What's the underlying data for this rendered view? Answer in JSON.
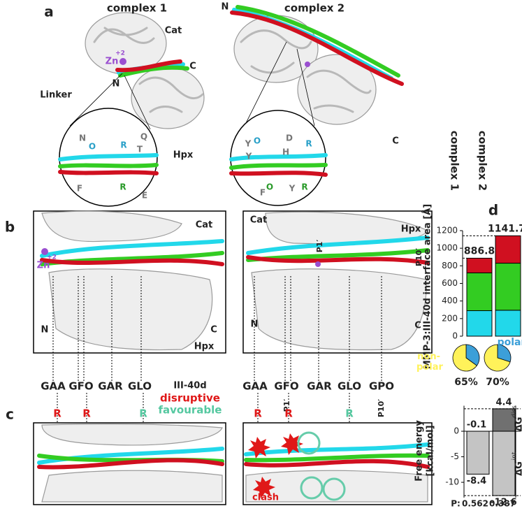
{
  "figure": {
    "a": {
      "label": "a",
      "title_1": "complex 1",
      "title_2": "complex 2",
      "cat": "Cat",
      "zn": "Zn",
      "zn_charge": "+2",
      "c_1": "C",
      "n_1": "N",
      "linker": "Linker",
      "hpx": "Hpx",
      "n_2": "N",
      "c_2": "C",
      "residues_1": [
        "N",
        "O",
        "R",
        "Q",
        "T",
        "F",
        "R",
        "E"
      ],
      "residues_2": [
        "Y",
        "O",
        "Y",
        "D",
        "H",
        "R",
        "F",
        "O",
        "Y",
        "R"
      ]
    },
    "b": {
      "label": "b",
      "cat_1": "Cat",
      "zn": "Zn",
      "zn_charge": "+2",
      "n_1": "N",
      "c_1": "C",
      "hpx_1": "Hpx",
      "cat_2": "Cat",
      "p1_2": "P1′",
      "hpx_2": "Hpx",
      "p10_2": "P10′",
      "n_2": "N",
      "c_2": "C",
      "triplets_1": [
        "GAA",
        "GFO",
        "GAR",
        "GLO"
      ],
      "triplets_2": [
        "GAA",
        "GFO",
        "GAR",
        "GLO",
        "GPO"
      ],
      "p1_3": "P1′",
      "p10_3": "P10′",
      "peptide": "III-40d",
      "disruptive": "disruptive",
      "favourable": "favourable"
    },
    "c": {
      "label": "c",
      "r_1": [
        "R",
        "R",
        "R"
      ],
      "r_2": [
        "R",
        "R",
        "R"
      ],
      "clash": "clash"
    },
    "d": {
      "label": "d"
    }
  },
  "chart_data": [
    {
      "type": "bar",
      "stacked": true,
      "categories": [
        "complex 1",
        "complex 2"
      ],
      "y_label": "MMP-3:III-40d interface area [Å]",
      "ylim": [
        0,
        1200
      ],
      "yticks": [
        0,
        200,
        400,
        600,
        800,
        1000,
        1200
      ],
      "series": [
        {
          "color": "#22d8ea",
          "values": [
            290,
            295
          ]
        },
        {
          "color": "#33cc22",
          "values": [
            430,
            535
          ]
        },
        {
          "color": "#d01020",
          "values": [
            166.8,
            311.7
          ]
        }
      ],
      "totals": [
        886.8,
        1141.7
      ]
    },
    {
      "type": "pie",
      "series": [
        {
          "name": "polar",
          "color": "#3c9fd8",
          "values": [
            35,
            30
          ]
        },
        {
          "name": "non-polar",
          "color": "#fff25a",
          "values": [
            65,
            70
          ],
          "value_labels": [
            "65%",
            "70%"
          ]
        }
      ]
    },
    {
      "type": "bar",
      "y_label": [
        "Free energy",
        "[kcal/mol]"
      ],
      "ylim": [
        -13,
        5
      ],
      "yticks": [
        0,
        -5,
        -10
      ],
      "series": [
        {
          "name": "ΔG",
          "name_sup": "diss",
          "color": "#707070",
          "values": [
            -0.1,
            4.4
          ]
        },
        {
          "name": "ΔG",
          "name_sup": "int",
          "color": "#c4c4c4",
          "values": [
            -8.4,
            -12.6
          ]
        }
      ],
      "p_label": "P:",
      "p_values": [
        0.562,
        0.387
      ]
    }
  ]
}
